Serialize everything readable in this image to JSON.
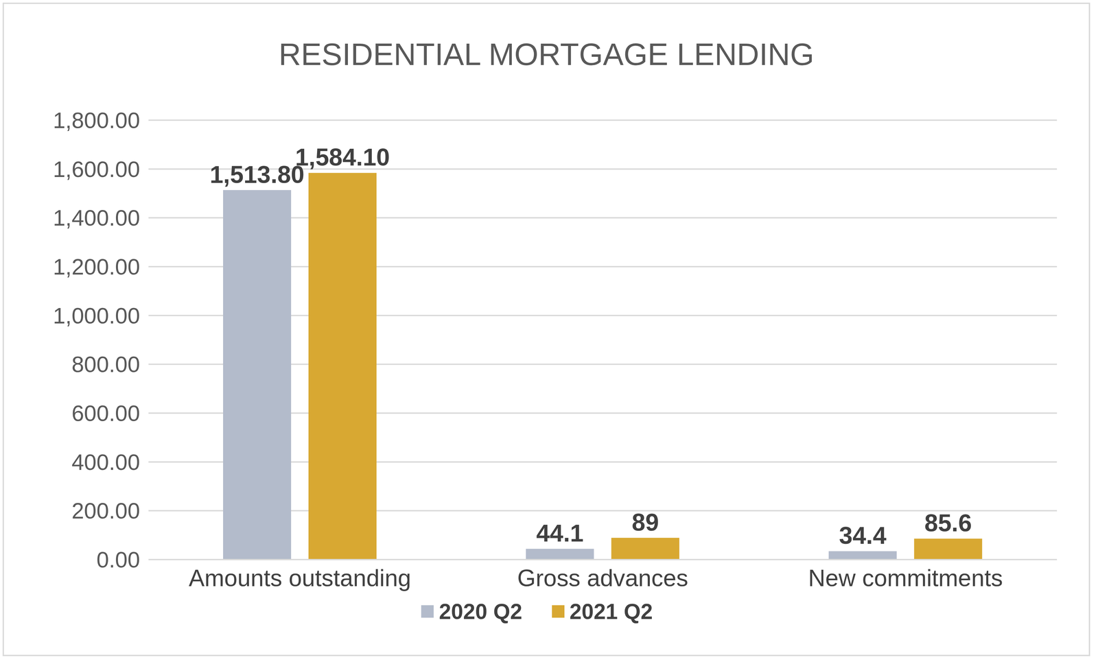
{
  "chart_data": {
    "type": "bar",
    "title": "RESIDENTIAL MORTGAGE LENDING",
    "categories": [
      "Amounts outstanding",
      "Gross advances",
      "New commitments"
    ],
    "series": [
      {
        "name": "2020 Q2",
        "color": "#b3bbcb",
        "values": [
          1513.8,
          44.1,
          34.4
        ],
        "value_labels": [
          "1,513.80",
          "44.1",
          "34.4"
        ]
      },
      {
        "name": "2021 Q2",
        "color": "#d8a832",
        "values": [
          1584.1,
          89,
          85.6
        ],
        "value_labels": [
          "1,584.10",
          "89",
          "85.6"
        ]
      }
    ],
    "ylim": [
      0,
      1800
    ],
    "yticks": [
      {
        "value": 0,
        "label": "0.00"
      },
      {
        "value": 200,
        "label": "200.00"
      },
      {
        "value": 400,
        "label": "400.00"
      },
      {
        "value": 600,
        "label": "600.00"
      },
      {
        "value": 800,
        "label": "800.00"
      },
      {
        "value": 1000,
        "label": "1,000.00"
      },
      {
        "value": 1200,
        "label": "1,200.00"
      },
      {
        "value": 1400,
        "label": "1,400.00"
      },
      {
        "value": 1600,
        "label": "1,600.00"
      },
      {
        "value": 1800,
        "label": "1,800.00"
      }
    ],
    "grid": true,
    "legend": "bottom",
    "data_labels": true
  }
}
